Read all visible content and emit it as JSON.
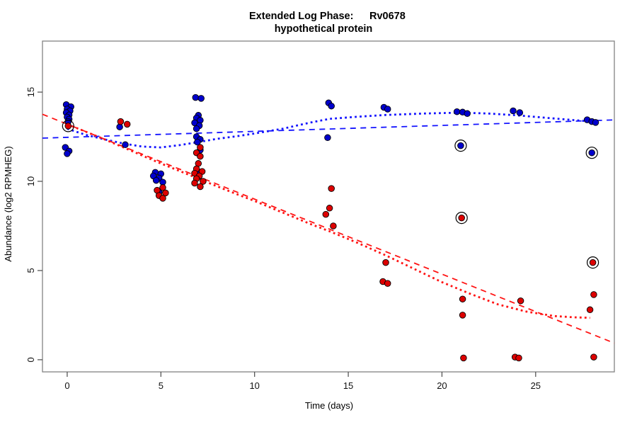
{
  "title": {
    "phase": "Extended Log Phase:",
    "gene": "Rv0678",
    "subtitle": "hypothetical protein"
  },
  "chart_data": {
    "type": "scatter",
    "title": "Extended Log Phase: Rv0678 — hypothetical protein",
    "xlabel": "Time  (days)",
    "ylabel": "Abundance  (log2 RPMHEG)",
    "xlim": [
      -1.32,
      29.2
    ],
    "ylim": [
      -0.68,
      17.86
    ],
    "x_ticks": [
      0,
      5,
      10,
      15,
      20,
      25
    ],
    "y_ticks": [
      0,
      5,
      10,
      15
    ],
    "grid": false,
    "legend": "none",
    "point_colors": {
      "blue": "#0000CD",
      "red": "#DD0000"
    },
    "line_colors": {
      "blue": "#1414FF",
      "red": "#FF1414"
    },
    "series": [
      {
        "name": "blue",
        "color": "#0000CD",
        "points": [
          [
            -0.05,
            14.3
          ],
          [
            0.2,
            14.18
          ],
          [
            0.0,
            14.05
          ],
          [
            0.15,
            13.95
          ],
          [
            -0.05,
            13.85
          ],
          [
            0.1,
            13.72
          ],
          [
            0.0,
            13.6
          ],
          [
            0.1,
            13.48
          ],
          [
            0.05,
            13.35
          ],
          [
            -0.1,
            11.9
          ],
          [
            0.1,
            11.7
          ],
          [
            0.0,
            11.55
          ],
          [
            2.8,
            13.05
          ],
          [
            3.1,
            12.05
          ],
          [
            4.7,
            10.5
          ],
          [
            5.0,
            10.42
          ],
          [
            4.6,
            10.3
          ],
          [
            4.9,
            10.18
          ],
          [
            4.75,
            10.05
          ],
          [
            5.1,
            9.95
          ],
          [
            4.9,
            9.4
          ],
          [
            6.85,
            14.7
          ],
          [
            7.15,
            14.65
          ],
          [
            7.0,
            13.7
          ],
          [
            6.9,
            13.55
          ],
          [
            7.1,
            13.42
          ],
          [
            6.8,
            13.28
          ],
          [
            7.05,
            13.12
          ],
          [
            6.9,
            12.95
          ],
          [
            6.9,
            12.5
          ],
          [
            7.1,
            12.35
          ],
          [
            6.95,
            12.2
          ],
          [
            7.1,
            11.75
          ],
          [
            7.0,
            10.5
          ],
          [
            13.95,
            14.4
          ],
          [
            14.1,
            14.22
          ],
          [
            13.9,
            12.45
          ],
          [
            16.9,
            14.15
          ],
          [
            17.1,
            14.05
          ],
          [
            20.8,
            13.9
          ],
          [
            21.1,
            13.88
          ],
          [
            21.35,
            13.8
          ],
          [
            23.8,
            13.95
          ],
          [
            24.15,
            13.85
          ],
          [
            27.75,
            13.45
          ],
          [
            28.0,
            13.35
          ],
          [
            28.2,
            13.3
          ],
          [
            21.0,
            12.0
          ],
          [
            28.0,
            11.6
          ]
        ]
      },
      {
        "name": "red",
        "color": "#DD0000",
        "points": [
          [
            0.05,
            13.1
          ],
          [
            2.85,
            13.35
          ],
          [
            3.2,
            13.2
          ],
          [
            5.1,
            9.65
          ],
          [
            4.8,
            9.5
          ],
          [
            5.25,
            9.35
          ],
          [
            4.9,
            9.2
          ],
          [
            5.1,
            9.05
          ],
          [
            7.1,
            11.9
          ],
          [
            6.9,
            11.6
          ],
          [
            7.1,
            11.4
          ],
          [
            7.0,
            11.0
          ],
          [
            6.9,
            10.7
          ],
          [
            7.2,
            10.55
          ],
          [
            6.8,
            10.45
          ],
          [
            7.05,
            10.3
          ],
          [
            6.9,
            10.15
          ],
          [
            7.25,
            10.0
          ],
          [
            6.8,
            9.9
          ],
          [
            7.1,
            9.7
          ],
          [
            14.1,
            9.6
          ],
          [
            14.0,
            8.5
          ],
          [
            13.8,
            8.15
          ],
          [
            14.2,
            7.5
          ],
          [
            17.0,
            5.45
          ],
          [
            16.85,
            4.38
          ],
          [
            17.1,
            4.28
          ],
          [
            21.1,
            3.4
          ],
          [
            21.1,
            2.5
          ],
          [
            21.15,
            0.1
          ],
          [
            24.2,
            3.3
          ],
          [
            23.9,
            0.15
          ],
          [
            24.1,
            0.1
          ],
          [
            28.1,
            3.65
          ],
          [
            27.9,
            2.8
          ],
          [
            28.1,
            0.15
          ],
          [
            21.05,
            7.95
          ],
          [
            28.05,
            5.45
          ]
        ]
      }
    ],
    "flagged_points": [
      {
        "series": "red",
        "x": 0.05,
        "y": 13.1
      },
      {
        "series": "blue",
        "x": 21.0,
        "y": 12.0
      },
      {
        "series": "red",
        "x": 21.05,
        "y": 7.95
      },
      {
        "series": "blue",
        "x": 28.0,
        "y": 11.6
      },
      {
        "series": "red",
        "x": 28.05,
        "y": 5.45
      }
    ],
    "fit_lines": [
      {
        "name": "blue-linear-fit",
        "style": "dashed",
        "color": "#1414FF",
        "points": [
          [
            -1.32,
            12.42
          ],
          [
            29.2,
            13.44
          ]
        ]
      },
      {
        "name": "blue-loess-fit",
        "style": "dotted",
        "color": "#1414FF",
        "points": [
          [
            0,
            12.95
          ],
          [
            1,
            12.6
          ],
          [
            2,
            12.35
          ],
          [
            3,
            12.12
          ],
          [
            4,
            11.95
          ],
          [
            5,
            11.9
          ],
          [
            6,
            12.03
          ],
          [
            7,
            12.2
          ],
          [
            8,
            12.38
          ],
          [
            9,
            12.52
          ],
          [
            10,
            12.68
          ],
          [
            11.5,
            12.95
          ],
          [
            13,
            13.3
          ],
          [
            14,
            13.5
          ],
          [
            15.5,
            13.62
          ],
          [
            17,
            13.72
          ],
          [
            19,
            13.8
          ],
          [
            21,
            13.85
          ],
          [
            22.5,
            13.8
          ],
          [
            24,
            13.7
          ],
          [
            26,
            13.52
          ],
          [
            28,
            13.35
          ]
        ]
      },
      {
        "name": "red-linear-fit",
        "style": "dashed",
        "color": "#FF1414",
        "points": [
          [
            -1.32,
            13.76
          ],
          [
            29.2,
            0.93
          ]
        ]
      },
      {
        "name": "red-loess-fit",
        "style": "dotted",
        "color": "#FF1414",
        "points": [
          [
            0,
            13.2
          ],
          [
            1,
            12.78
          ],
          [
            2,
            12.35
          ],
          [
            3,
            11.9
          ],
          [
            4,
            11.45
          ],
          [
            5,
            11.0
          ],
          [
            6,
            10.58
          ],
          [
            7,
            10.15
          ],
          [
            8,
            9.72
          ],
          [
            9,
            9.3
          ],
          [
            10,
            8.9
          ],
          [
            11.5,
            8.25
          ],
          [
            13,
            7.6
          ],
          [
            14,
            7.2
          ],
          [
            15.5,
            6.55
          ],
          [
            17,
            5.85
          ],
          [
            18.5,
            5.1
          ],
          [
            20,
            4.35
          ],
          [
            21.5,
            3.7
          ],
          [
            23,
            3.1
          ],
          [
            24.5,
            2.7
          ],
          [
            26,
            2.45
          ],
          [
            27,
            2.38
          ],
          [
            27.9,
            2.35
          ]
        ]
      }
    ]
  }
}
